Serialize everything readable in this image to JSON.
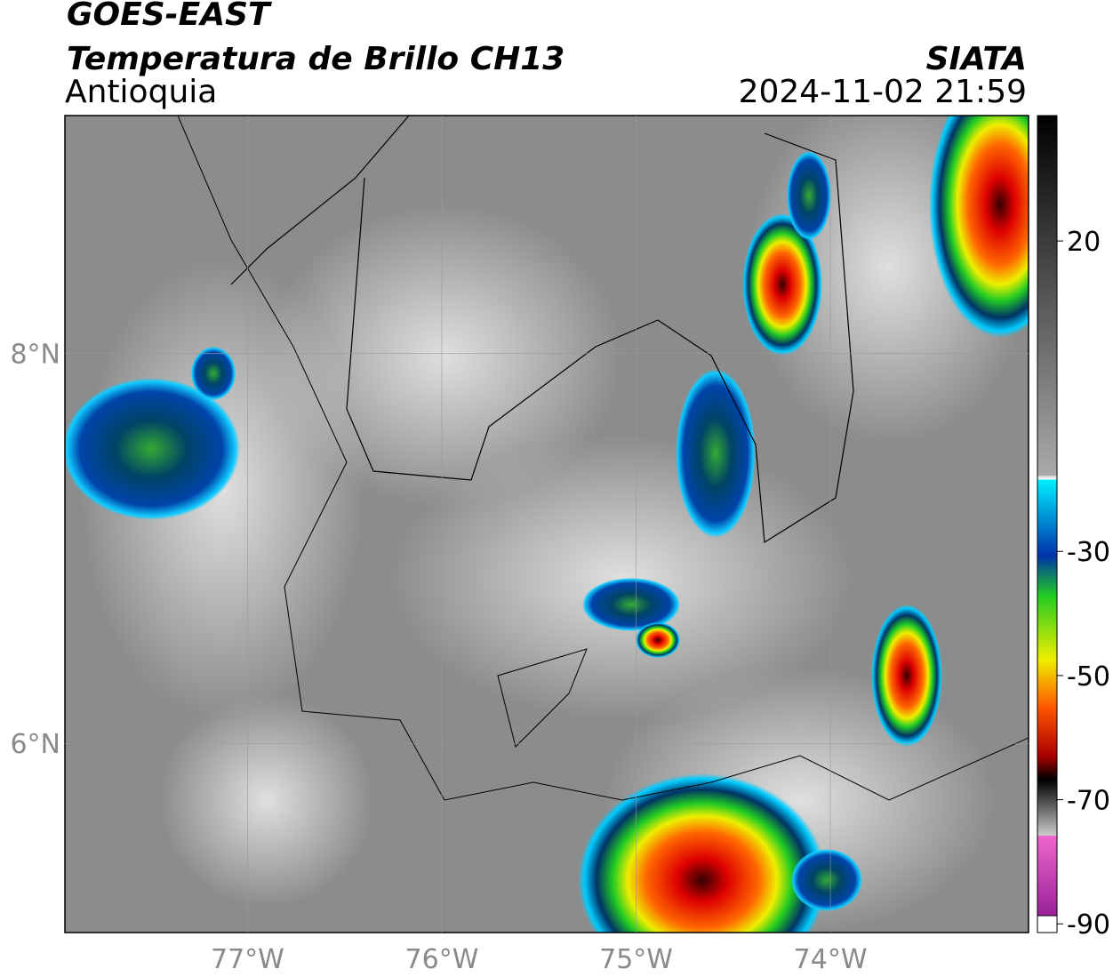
{
  "header": {
    "title": "GOES-EAST",
    "subtitle": "Temperatura de Brillo CH13",
    "region": "Antioquia",
    "source": "SIATA",
    "datetime": "2024-11-02 21:59"
  },
  "map": {
    "xlim": [
      -77.94,
      -72.98
    ],
    "ylim": [
      5.03,
      9.22
    ],
    "xticks": [
      {
        "value": -77,
        "label": "77°W"
      },
      {
        "value": -76,
        "label": "76°W"
      },
      {
        "value": -75,
        "label": "75°W"
      },
      {
        "value": -74,
        "label": "74°W"
      }
    ],
    "yticks": [
      {
        "value": 6,
        "label": "6°N"
      },
      {
        "value": 8,
        "label": "8°N"
      }
    ],
    "grid": true
  },
  "colorbar": {
    "lim": [
      -91.4,
      40.2
    ],
    "ticks": [
      20,
      -30,
      -50,
      -70,
      -90
    ]
  }
}
